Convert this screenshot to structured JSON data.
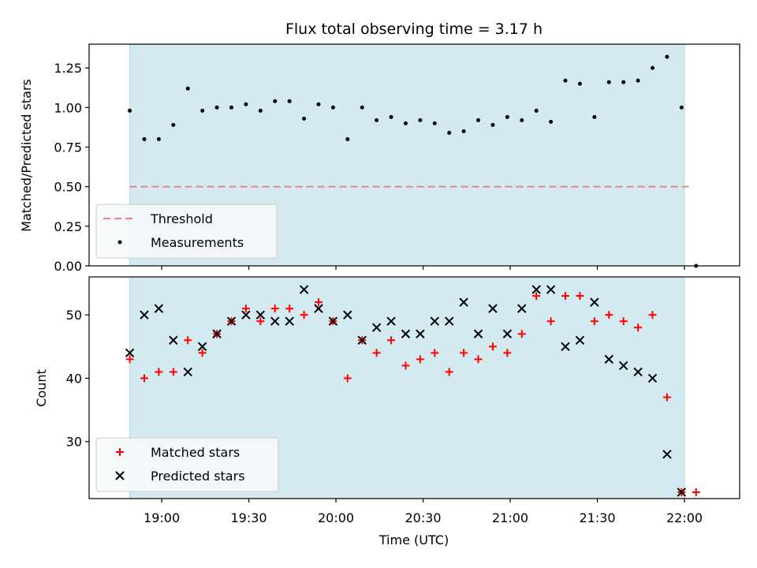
{
  "chart_data": [
    {
      "type": "scatter",
      "title": "Flux total observing time = 3.17 h",
      "xlabel": "",
      "ylabel": "Matched/Predicted stars",
      "ylim": [
        0,
        1.4
      ],
      "yticks": [
        "0.00",
        "0.25",
        "0.50",
        "0.75",
        "1.00",
        "1.25"
      ],
      "shaded_span": [
        "18:49",
        "22:00"
      ],
      "threshold": {
        "name": "Threshold",
        "value": 0.5,
        "x": [
          "18:49",
          "22:03"
        ],
        "color": "#f08080"
      },
      "series": [
        {
          "name": "Measurements",
          "color": "#000000",
          "x": [
            "18:49",
            "18:54",
            "18:59",
            "19:04",
            "19:09",
            "19:14",
            "19:19",
            "19:24",
            "19:29",
            "19:34",
            "19:39",
            "19:44",
            "19:49",
            "19:54",
            "19:59",
            "20:04",
            "20:09",
            "20:14",
            "20:19",
            "20:24",
            "20:29",
            "20:34",
            "20:39",
            "20:44",
            "20:49",
            "20:54",
            "20:59",
            "21:04",
            "21:09",
            "21:14",
            "21:19",
            "21:24",
            "21:29",
            "21:34",
            "21:39",
            "21:44",
            "21:49",
            "21:54",
            "21:59",
            "22:04"
          ],
          "y": [
            0.98,
            0.8,
            0.8,
            0.89,
            1.12,
            0.98,
            1.0,
            1.0,
            1.02,
            0.98,
            1.04,
            1.04,
            0.93,
            1.02,
            1.0,
            0.8,
            1.0,
            0.92,
            0.94,
            0.9,
            0.92,
            0.9,
            0.84,
            0.85,
            0.92,
            0.89,
            0.94,
            0.92,
            0.98,
            0.91,
            1.17,
            1.15,
            0.94,
            1.16,
            1.16,
            1.17,
            1.25,
            1.32,
            1.0,
            0.0
          ]
        }
      ]
    },
    {
      "type": "scatter",
      "title": "",
      "xlabel": "Time (UTC)",
      "ylabel": "Count",
      "ylim": [
        21,
        56
      ],
      "yticks": [
        "30",
        "40",
        "50"
      ],
      "xticks": [
        "19:00",
        "19:30",
        "20:00",
        "20:30",
        "21:00",
        "21:30",
        "22:00"
      ],
      "shaded_span": [
        "18:49",
        "22:00"
      ],
      "series": [
        {
          "name": "Matched stars",
          "color": "#ff0000",
          "marker": "plus",
          "x": [
            "18:49",
            "18:54",
            "18:59",
            "19:04",
            "19:09",
            "19:14",
            "19:19",
            "19:24",
            "19:29",
            "19:34",
            "19:39",
            "19:44",
            "19:49",
            "19:54",
            "19:59",
            "20:04",
            "20:09",
            "20:14",
            "20:19",
            "20:24",
            "20:29",
            "20:34",
            "20:39",
            "20:44",
            "20:49",
            "20:54",
            "20:59",
            "21:04",
            "21:09",
            "21:14",
            "21:19",
            "21:24",
            "21:29",
            "21:34",
            "21:39",
            "21:44",
            "21:49",
            "21:54",
            "21:59",
            "22:04"
          ],
          "y": [
            43,
            40,
            41,
            41,
            46,
            44,
            47,
            49,
            51,
            49,
            51,
            51,
            50,
            52,
            49,
            40,
            46,
            44,
            46,
            42,
            43,
            44,
            41,
            44,
            43,
            45,
            44,
            47,
            53,
            49,
            53,
            53,
            49,
            50,
            49,
            48,
            50,
            37,
            22,
            22
          ]
        },
        {
          "name": "Predicted stars",
          "color": "#000000",
          "marker": "x",
          "x": [
            "18:49",
            "18:54",
            "18:59",
            "19:04",
            "19:09",
            "19:14",
            "19:19",
            "19:24",
            "19:29",
            "19:34",
            "19:39",
            "19:44",
            "19:49",
            "19:54",
            "19:59",
            "20:04",
            "20:09",
            "20:14",
            "20:19",
            "20:24",
            "20:29",
            "20:34",
            "20:39",
            "20:44",
            "20:49",
            "20:54",
            "20:59",
            "21:04",
            "21:09",
            "21:14",
            "21:19",
            "21:24",
            "21:29",
            "21:34",
            "21:39",
            "21:44",
            "21:49",
            "21:54",
            "21:59"
          ],
          "y": [
            44,
            50,
            51,
            46,
            41,
            45,
            47,
            49,
            50,
            50,
            49,
            49,
            54,
            51,
            49,
            50,
            46,
            48,
            49,
            47,
            47,
            49,
            49,
            52,
            47,
            51,
            47,
            51,
            54,
            54,
            45,
            46,
            52,
            43,
            42,
            41,
            40,
            28,
            22
          ]
        }
      ]
    }
  ]
}
